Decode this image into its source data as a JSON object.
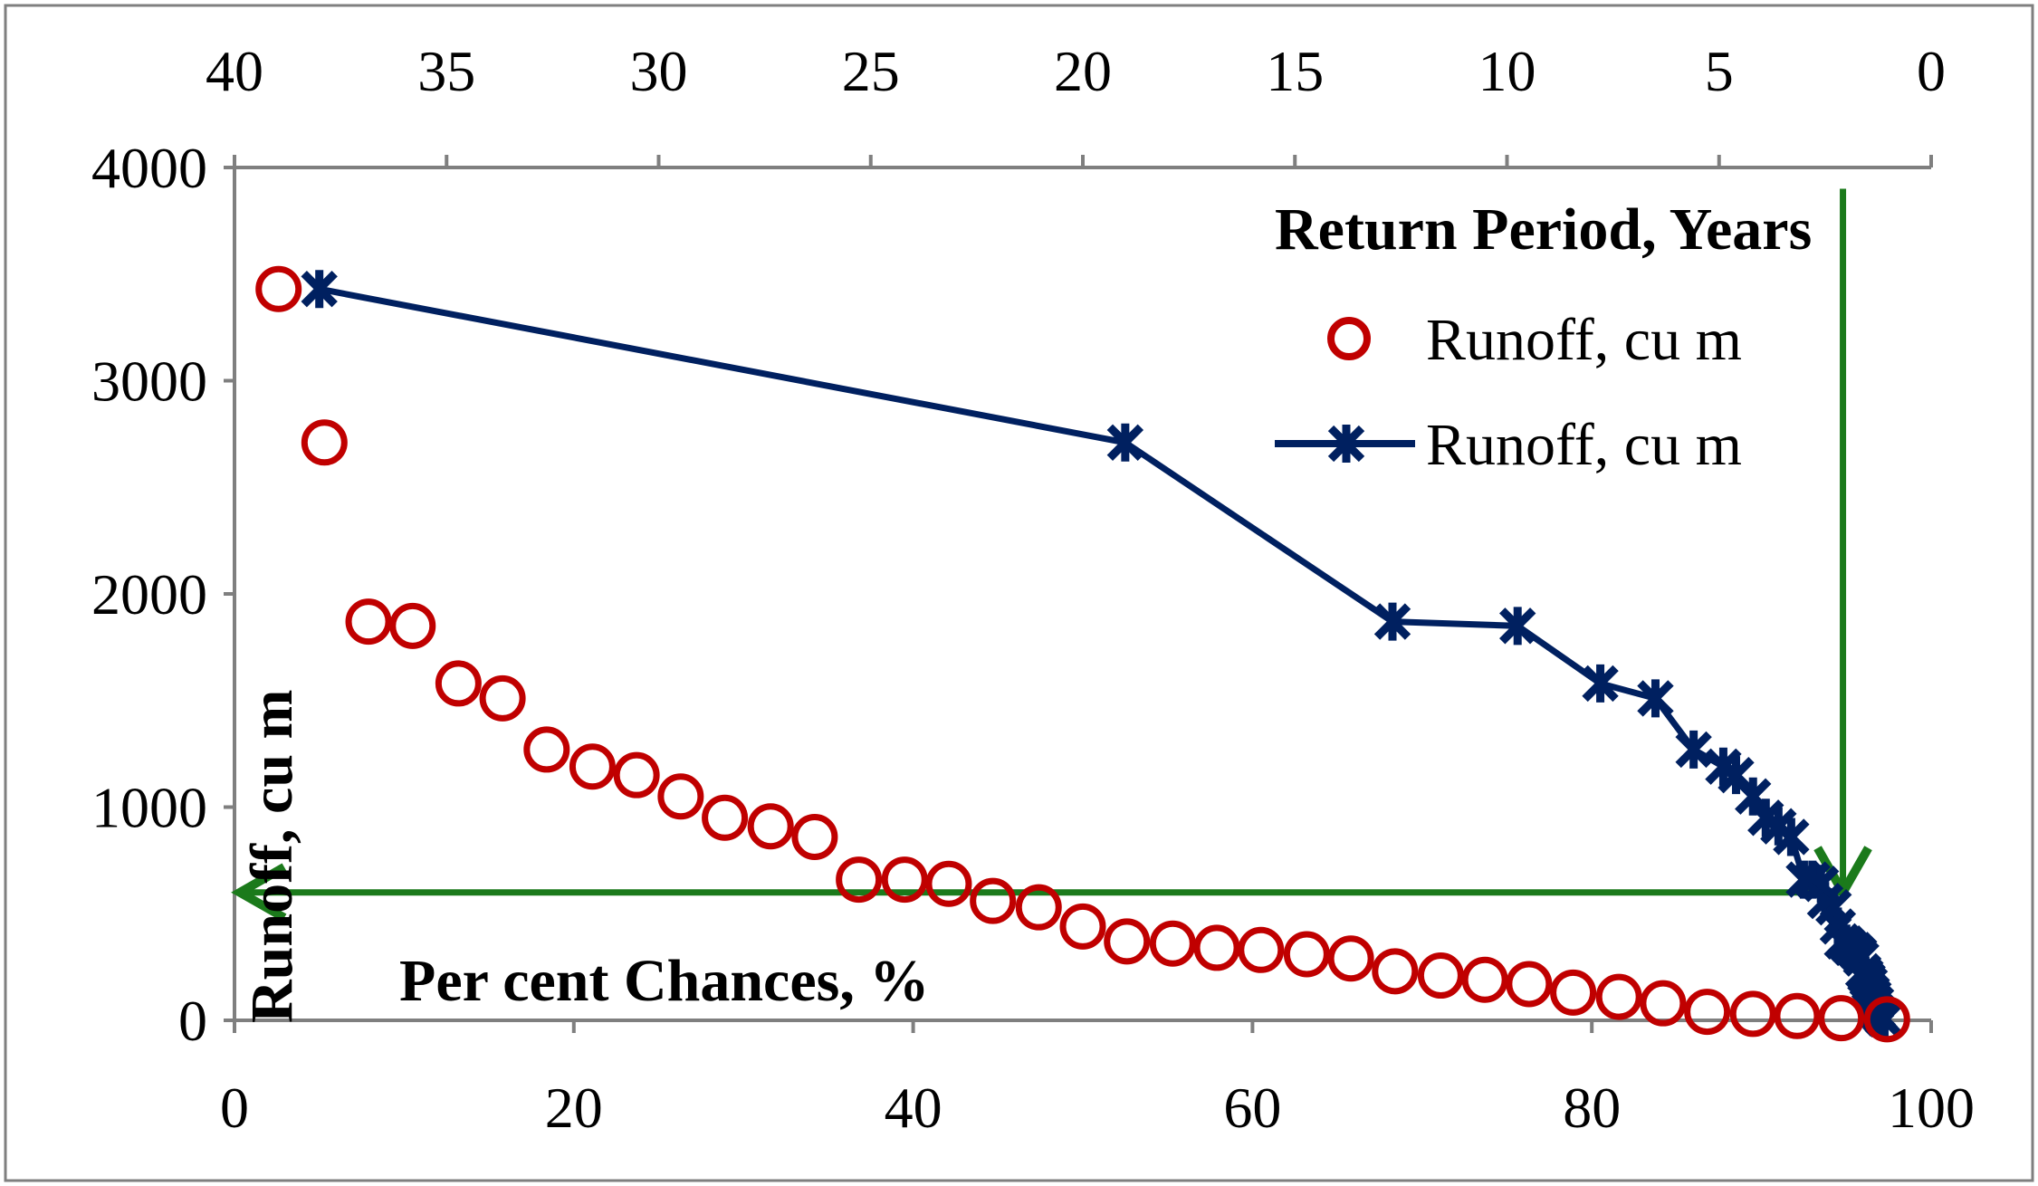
{
  "chart_data": {
    "type": "scatter",
    "axes": {
      "primary_x": {
        "label": "Per cent Chances, %",
        "range": [
          0,
          100
        ],
        "ticks": [
          "0",
          "20",
          "40",
          "60",
          "80",
          "100"
        ],
        "position": "bottom"
      },
      "primary_y": {
        "label": "Runoff, cu m",
        "range": [
          0,
          4000
        ],
        "ticks": [
          "0",
          "1000",
          "2000",
          "3000",
          "4000"
        ],
        "position": "left"
      },
      "secondary_x": {
        "label": "Return Period, Years",
        "range": [
          40,
          0
        ],
        "ticks": [
          "40",
          "35",
          "30",
          "25",
          "20",
          "15",
          "10",
          "5",
          "0"
        ],
        "position": "top",
        "reversed": true
      }
    },
    "series": [
      {
        "name": "Runoff, cu m",
        "axis": "primary_x",
        "style": "open-circle",
        "color": "#C00000",
        "x": [
          2.6,
          5.3,
          7.9,
          10.5,
          13.2,
          15.8,
          18.4,
          21.1,
          23.7,
          26.3,
          28.9,
          31.6,
          34.2,
          36.8,
          39.5,
          42.1,
          44.7,
          47.4,
          50.0,
          52.6,
          55.3,
          57.9,
          60.5,
          63.2,
          65.8,
          68.4,
          71.1,
          73.7,
          76.3,
          78.9,
          81.6,
          84.2,
          86.8,
          89.5,
          92.1,
          94.7,
          97.4
        ],
        "y": [
          3430,
          2710,
          1870,
          1850,
          1580,
          1510,
          1270,
          1190,
          1150,
          1050,
          950,
          910,
          860,
          660,
          660,
          640,
          560,
          530,
          440,
          370,
          360,
          340,
          330,
          310,
          290,
          230,
          210,
          190,
          170,
          130,
          110,
          80,
          40,
          30,
          20,
          10,
          5
        ]
      },
      {
        "name": "Runoff, cu m",
        "axis": "secondary_x",
        "style": "line-star",
        "color": "#002060",
        "x": [
          38.0,
          19.0,
          12.7,
          9.75,
          7.8,
          6.5,
          5.6,
          4.9,
          4.6,
          4.2,
          3.9,
          3.6,
          3.3,
          3.0,
          2.8,
          2.6,
          2.5,
          2.3,
          2.2,
          2.1,
          2.0,
          1.9,
          1.8,
          1.7,
          1.65,
          1.6,
          1.55,
          1.5,
          1.45,
          1.4,
          1.36,
          1.3,
          1.26,
          1.22,
          1.18,
          1.14,
          1.1
        ],
        "y": [
          3430,
          2710,
          1870,
          1850,
          1580,
          1510,
          1270,
          1190,
          1150,
          1050,
          950,
          910,
          860,
          660,
          660,
          640,
          560,
          530,
          440,
          370,
          360,
          340,
          330,
          310,
          290,
          230,
          210,
          190,
          170,
          130,
          110,
          80,
          40,
          30,
          20,
          10,
          5
        ]
      }
    ],
    "annotations": {
      "color": "#1B7A1B",
      "vertical_arrow": {
        "x_percent": 94.8,
        "y_from": 3900,
        "y_to": 600,
        "direction": "down"
      },
      "horizontal_arrow": {
        "y": 600,
        "x_from_percent": 94.8,
        "x_to_percent": 0,
        "direction": "left"
      }
    },
    "legend": {
      "placement": "top-right"
    },
    "grid": false
  }
}
